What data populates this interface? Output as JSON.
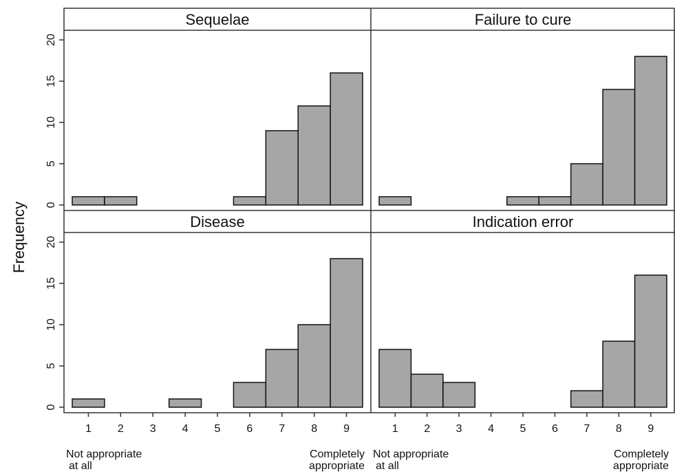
{
  "chart_data": {
    "type": "bar",
    "ylabel": "Frequency",
    "ylim": [
      0,
      20
    ],
    "yticks": [
      0,
      5,
      10,
      15,
      20
    ],
    "categories": [
      1,
      2,
      3,
      4,
      5,
      6,
      7,
      8,
      9
    ],
    "x_anchor_labels": {
      "low": [
        "Not appropriate",
        "at all"
      ],
      "high": [
        "Completely",
        "appropriate"
      ]
    },
    "bar_color": "#a6a6a6",
    "panels": [
      {
        "title": "Sequelae",
        "values": [
          1,
          1,
          0,
          0,
          0,
          1,
          9,
          12,
          16
        ]
      },
      {
        "title": "Failure to cure",
        "values": [
          1,
          0,
          0,
          0,
          1,
          1,
          5,
          14,
          18
        ]
      },
      {
        "title": "Disease",
        "values": [
          1,
          0,
          0,
          1,
          0,
          3,
          7,
          10,
          18
        ]
      },
      {
        "title": "Indication error",
        "values": [
          7,
          4,
          3,
          0,
          0,
          0,
          2,
          8,
          16
        ]
      }
    ]
  }
}
